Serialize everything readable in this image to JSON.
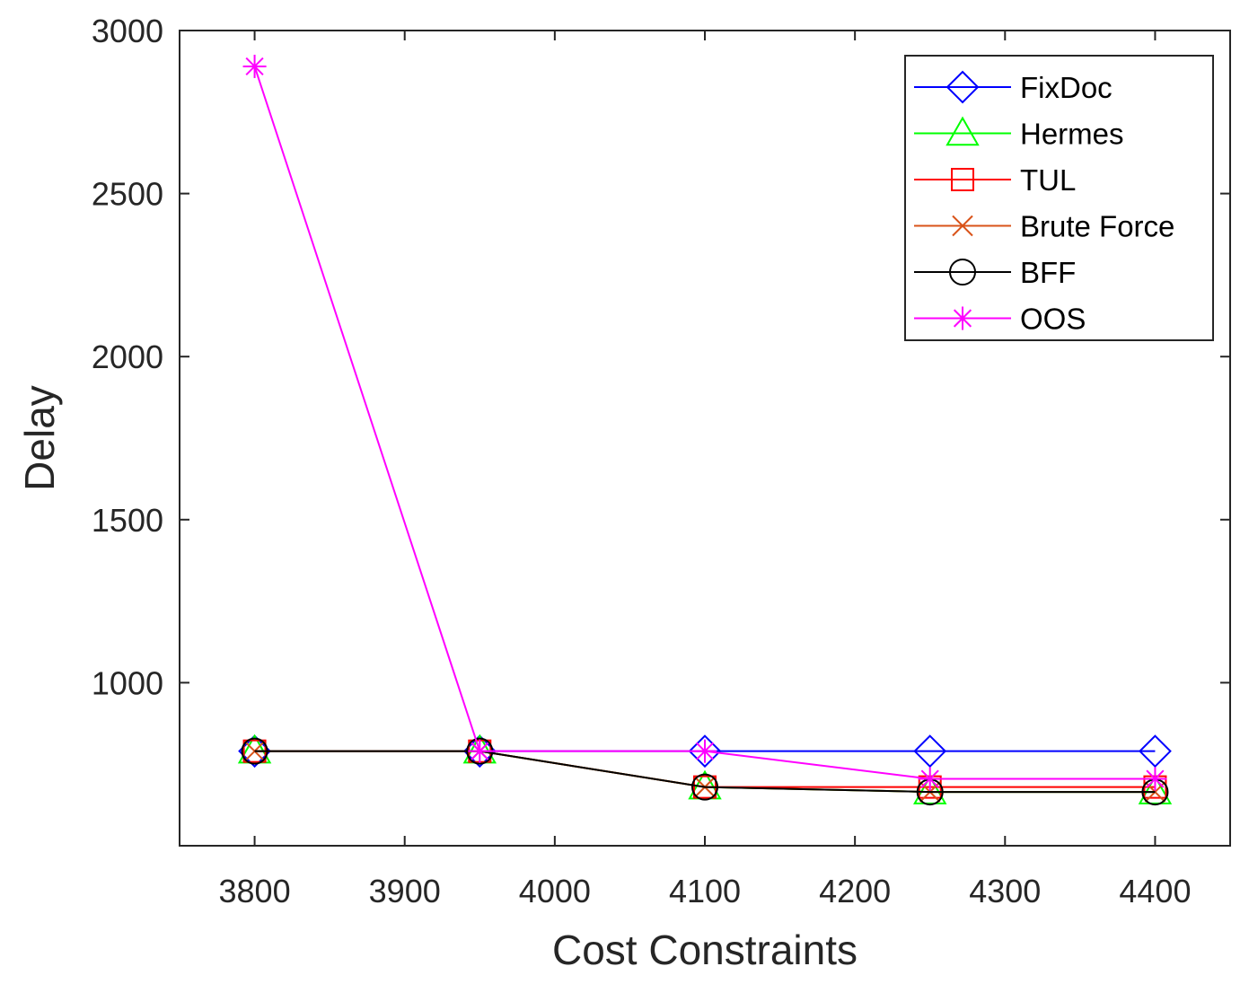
{
  "chart_data": {
    "type": "line",
    "title": "",
    "xlabel": "Cost Constraints",
    "ylabel": "Delay",
    "x": [
      3800,
      3950,
      4100,
      4250,
      4400
    ],
    "xlim": [
      3750,
      4450
    ],
    "ylim": [
      500,
      3000
    ],
    "xticks": [
      3800,
      3900,
      4000,
      4100,
      4200,
      4300,
      4400
    ],
    "yticks": [
      1000,
      1500,
      2000,
      2500,
      3000
    ],
    "xtick_labels": [
      "3800",
      "3900",
      "4000",
      "4100",
      "4200",
      "4300",
      "4400"
    ],
    "ytick_labels": [
      "1000",
      "1500",
      "2000",
      "2500",
      "3000"
    ],
    "grid": false,
    "legend_position": "top-right",
    "series": [
      {
        "name": "FixDoc",
        "color": "#0000ff",
        "marker": "diamond",
        "values": [
          790,
          790,
          790,
          790,
          790
        ]
      },
      {
        "name": "Hermes",
        "color": "#00ff00",
        "marker": "triangle",
        "values": [
          790,
          790,
          680,
          665,
          665
        ]
      },
      {
        "name": "TUL",
        "color": "#ff0000",
        "marker": "square",
        "values": [
          790,
          790,
          680,
          680,
          680
        ]
      },
      {
        "name": "Brute Force",
        "color": "#d95319",
        "marker": "x",
        "values": [
          790,
          790,
          680,
          665,
          665
        ]
      },
      {
        "name": "BFF",
        "color": "#000000",
        "marker": "circle",
        "values": [
          790,
          790,
          680,
          665,
          665
        ]
      },
      {
        "name": "OOS",
        "color": "#ff00ff",
        "marker": "asterisk",
        "values": [
          2890,
          790,
          790,
          705,
          705
        ]
      }
    ]
  }
}
